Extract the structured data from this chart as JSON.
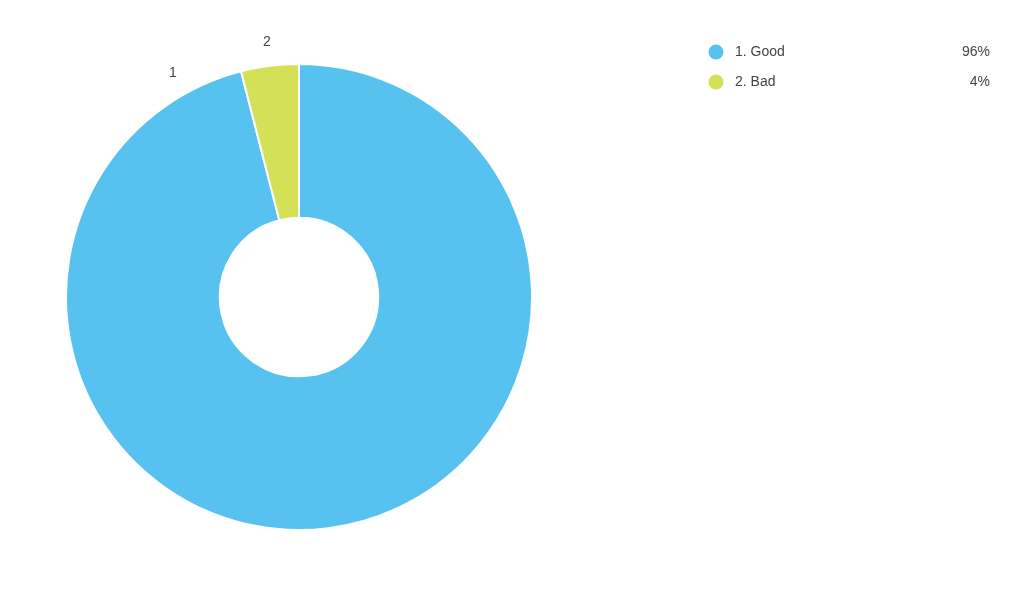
{
  "chart_data": {
    "type": "donut",
    "categories": [
      "1. Good",
      "2. Bad"
    ],
    "values": [
      96,
      4
    ],
    "colors": [
      "#57c2f0",
      "#d4e157"
    ],
    "value_labels": [
      "96%",
      "4%"
    ],
    "legend": "top right",
    "annotations": [
      {
        "text": "1",
        "x": "1. Good"
      },
      {
        "text": "2",
        "x": "2. Bad"
      }
    ]
  }
}
